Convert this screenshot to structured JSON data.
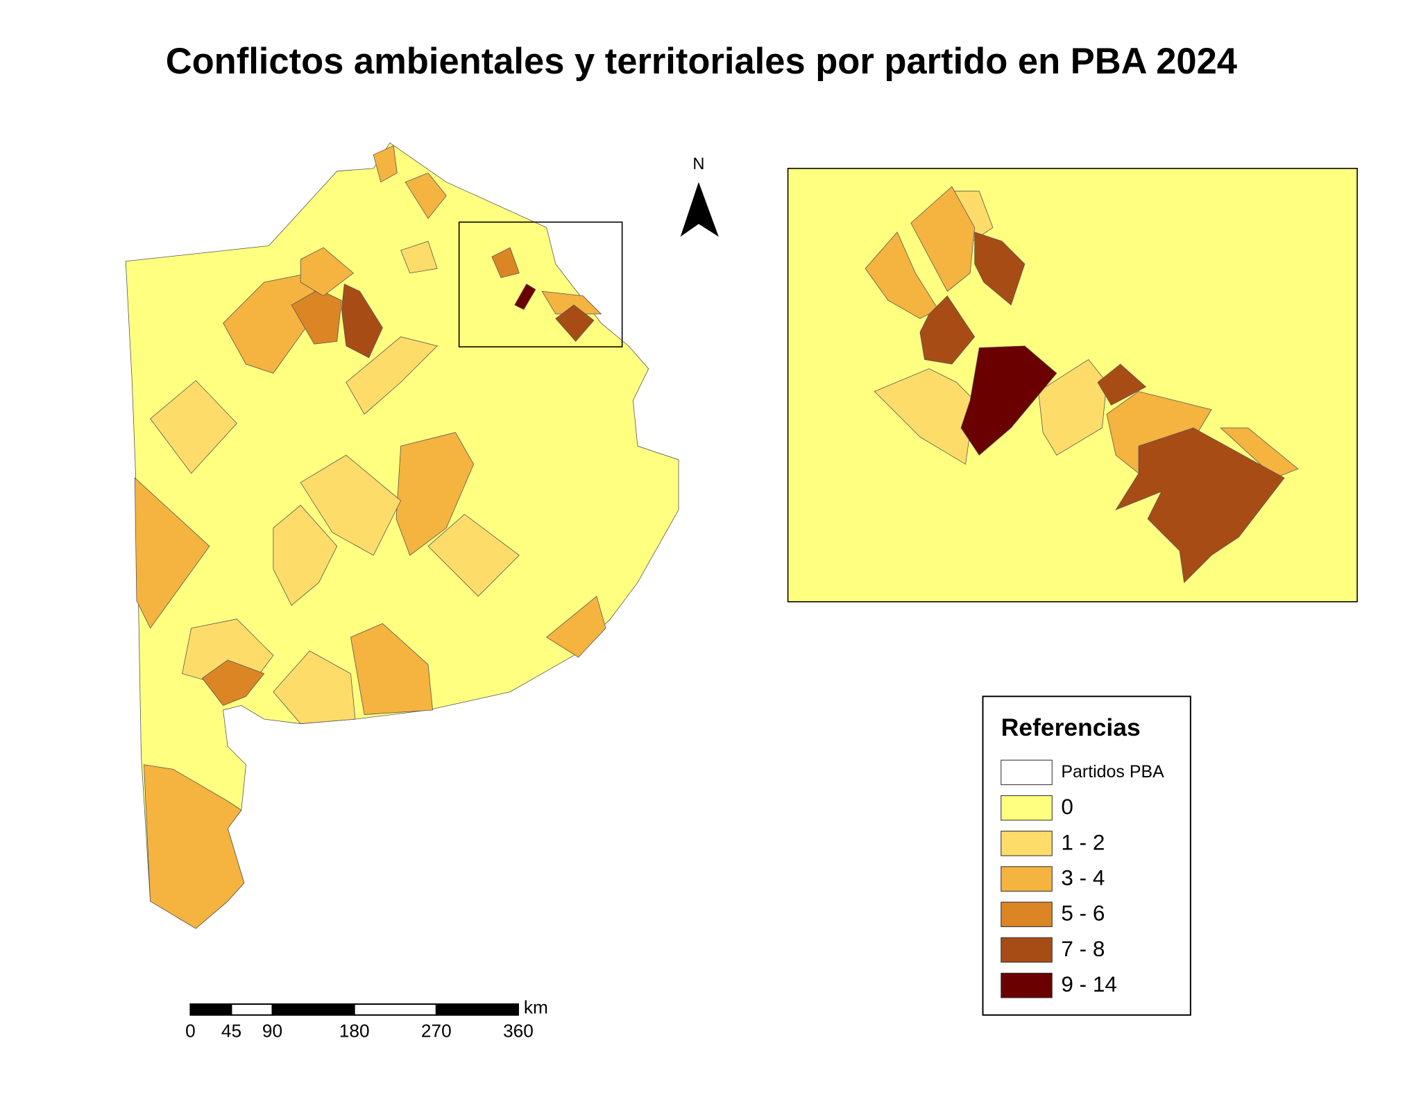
{
  "title": "Conflictos ambientales y territoriales por partido en PBA 2024",
  "north_arrow": "N",
  "legend": {
    "title": "Referencias",
    "items": [
      {
        "label": "Partidos PBA",
        "color": "#ffffff"
      },
      {
        "label": "0",
        "color": "#ffff80"
      },
      {
        "label": "1 - 2",
        "color": "#fddc6a"
      },
      {
        "label": "3 - 4",
        "color": "#f5b340"
      },
      {
        "label": "5 - 6",
        "color": "#db8525"
      },
      {
        "label": "7 - 8",
        "color": "#a84c16"
      },
      {
        "label": "9 - 14",
        "color": "#6b0000"
      }
    ]
  },
  "scale_bar": {
    "ticks": [
      0,
      45,
      90,
      180,
      270,
      360
    ],
    "unit": "km"
  }
}
